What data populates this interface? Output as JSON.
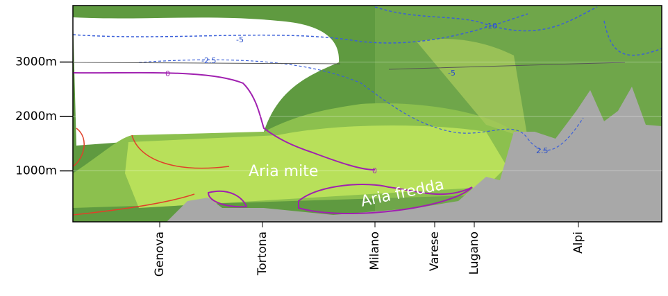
{
  "y_axis": {
    "ticks": [
      {
        "value": 1000,
        "label": "1000m"
      },
      {
        "value": 2000,
        "label": "2000m"
      },
      {
        "value": 3000,
        "label": "3000m"
      }
    ]
  },
  "places": [
    "Genova",
    "Tortona",
    "Milano",
    "Varese",
    "Lugano",
    "Alpi"
  ],
  "annotations": [
    "Aria mite",
    "Aria fredda"
  ],
  "contour_labels": [
    "-10",
    "-5",
    "-5",
    "-2.5",
    "0",
    "0",
    "2.5"
  ]
}
